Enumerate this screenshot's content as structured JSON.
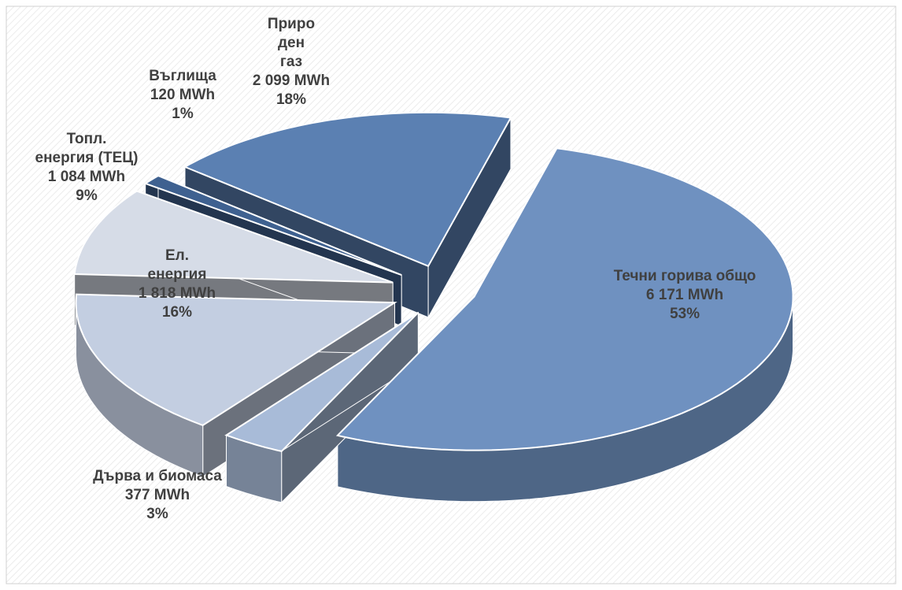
{
  "chart_data": {
    "type": "pie3d",
    "categories": [
      "Течни горива общо",
      "Дърва и биомаса",
      "Ел.\nенергия",
      "Топл.\nенергия (ТЕЦ)",
      "Въглища",
      "Приро\nден\nгаз"
    ],
    "values": [
      6171,
      377,
      1818,
      1084,
      120,
      2099
    ],
    "value_labels": [
      "6 171 MWh",
      "377 MWh",
      "1 818 MWh",
      "1 084 MWh",
      "120 MWh",
      "2 099 MWh"
    ],
    "percent_labels": [
      "53%",
      "3%",
      "16%",
      "9%",
      "1%",
      "18%"
    ],
    "colors": [
      "#6f91c0",
      "#a8bbd8",
      "#c3cee1",
      "#d6dce7",
      "#3f6190",
      "#5b80b2"
    ]
  }
}
